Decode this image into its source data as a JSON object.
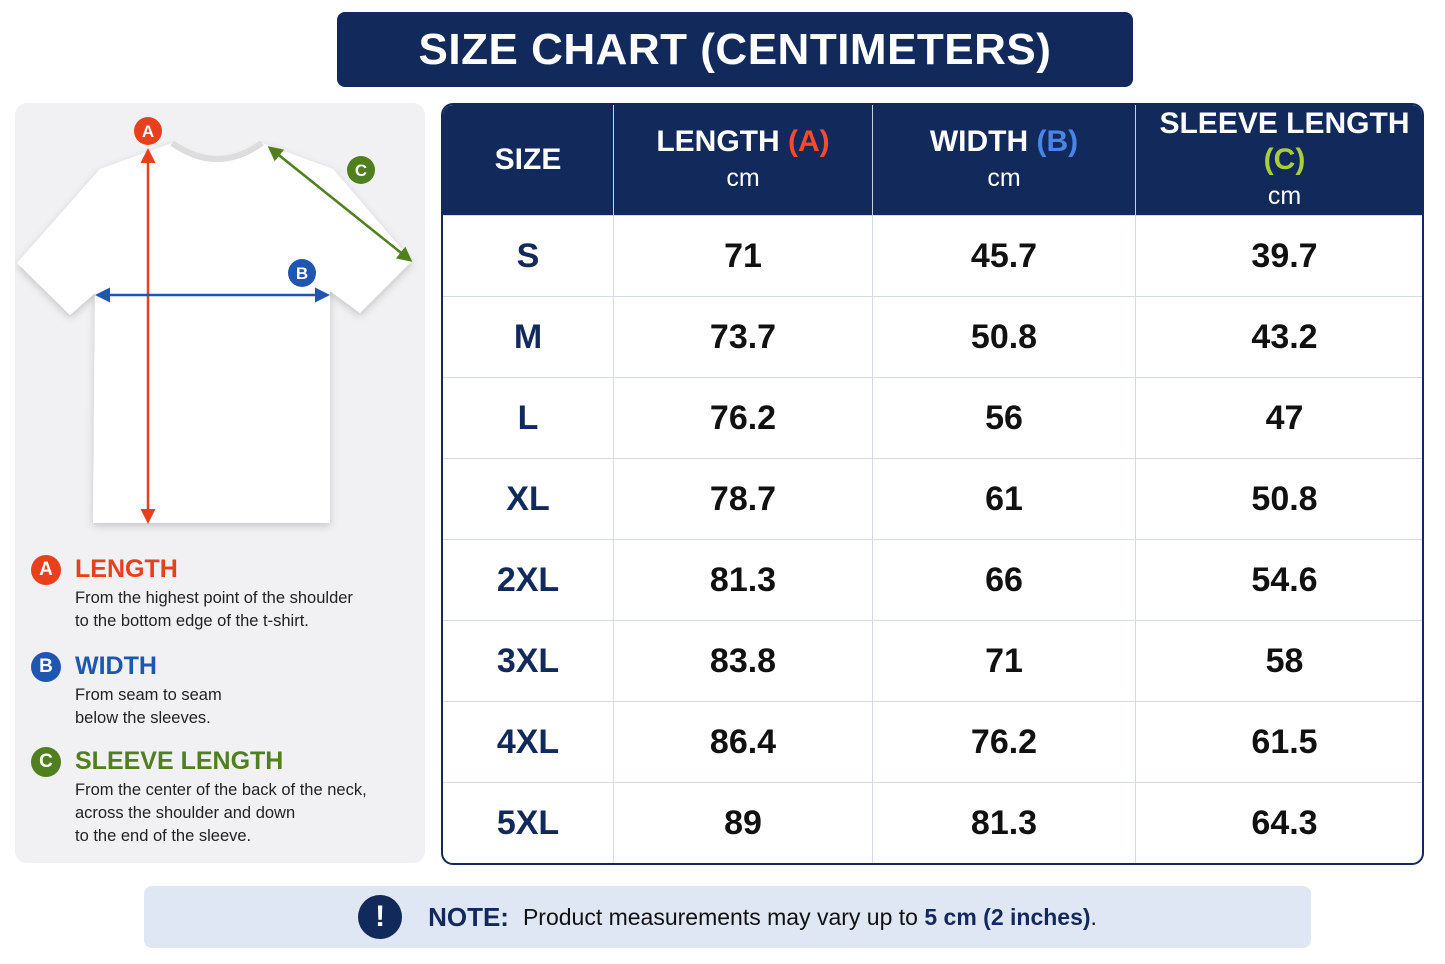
{
  "title": "SIZE CHART (CENTIMETERS)",
  "legend": {
    "items": [
      {
        "letter": "A",
        "label": "LENGTH",
        "description": [
          "From the highest point of the shoulder",
          "to the bottom edge of the t-shirt."
        ]
      },
      {
        "letter": "B",
        "label": "WIDTH",
        "description": [
          "From seam to seam",
          "below the sleeves."
        ]
      },
      {
        "letter": "C",
        "label": "SLEEVE LENGTH",
        "description": [
          "From the center of the back of the neck,",
          "across the shoulder and down",
          "to the end of the sleeve."
        ]
      }
    ]
  },
  "table": {
    "headers": [
      {
        "label": "SIZE"
      },
      {
        "label": "LENGTH",
        "marker": "(A)",
        "unit": "cm"
      },
      {
        "label": "WIDTH",
        "marker": "(B)",
        "unit": "cm"
      },
      {
        "label": "SLEEVE LENGTH",
        "marker": "(C)",
        "unit": "cm"
      }
    ],
    "rows": [
      [
        "S",
        "71",
        "45.7",
        "39.7"
      ],
      [
        "M",
        "73.7",
        "50.8",
        "43.2"
      ],
      [
        "L",
        "76.2",
        "56",
        "47"
      ],
      [
        "XL",
        "78.7",
        "61",
        "50.8"
      ],
      [
        "2XL",
        "81.3",
        "66",
        "54.6"
      ],
      [
        "3XL",
        "83.8",
        "71",
        "58"
      ],
      [
        "4XL",
        "86.4",
        "76.2",
        "61.5"
      ],
      [
        "5XL",
        "89",
        "81.3",
        "64.3"
      ]
    ]
  },
  "note": {
    "label": "NOTE:",
    "text": "Product measurements may vary up to ",
    "emphasis": "5 cm (2 inches)",
    "end": "."
  }
}
